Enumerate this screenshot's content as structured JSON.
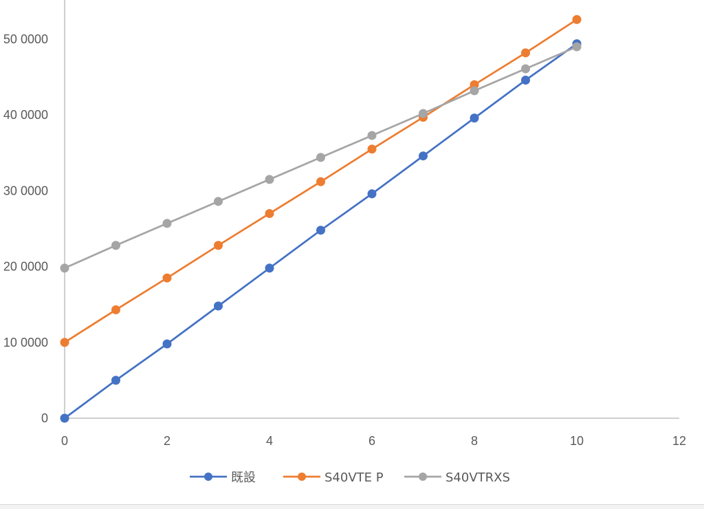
{
  "chart_data": {
    "type": "line",
    "title": "",
    "xlabel": "",
    "ylabel": "",
    "xlim": [
      0,
      12
    ],
    "ylim": [
      0,
      500000
    ],
    "x_ticks": [
      0,
      2,
      4,
      6,
      8,
      10,
      12
    ],
    "x_tick_labels": [
      "0",
      "2",
      "4",
      "6",
      "8",
      "10",
      "12"
    ],
    "y_ticks": [
      0,
      100000,
      200000,
      300000,
      400000,
      500000
    ],
    "y_tick_labels": [
      "0",
      "10 0000",
      "20 0000",
      "30 0000",
      "40 0000",
      "50 0000"
    ],
    "grid": false,
    "legend_position": "bottom",
    "x": [
      0,
      1,
      2,
      3,
      4,
      5,
      6,
      7,
      8,
      9,
      10
    ],
    "series": [
      {
        "name": "既設",
        "color": "#4472c4",
        "values": [
          0,
          50000,
          98000,
          148000,
          198000,
          248000,
          296000,
          346000,
          396000,
          446000,
          494000
        ]
      },
      {
        "name": "S40VTE P",
        "color": "#ed7d31",
        "values": [
          100000,
          143000,
          185000,
          228000,
          270000,
          312000,
          355000,
          397000,
          440000,
          482000,
          526000
        ]
      },
      {
        "name": "S40VTRXS",
        "color": "#a5a5a5",
        "values": [
          198000,
          228000,
          257000,
          286000,
          315000,
          344000,
          373000,
          402000,
          432000,
          461000,
          490000
        ]
      }
    ]
  }
}
